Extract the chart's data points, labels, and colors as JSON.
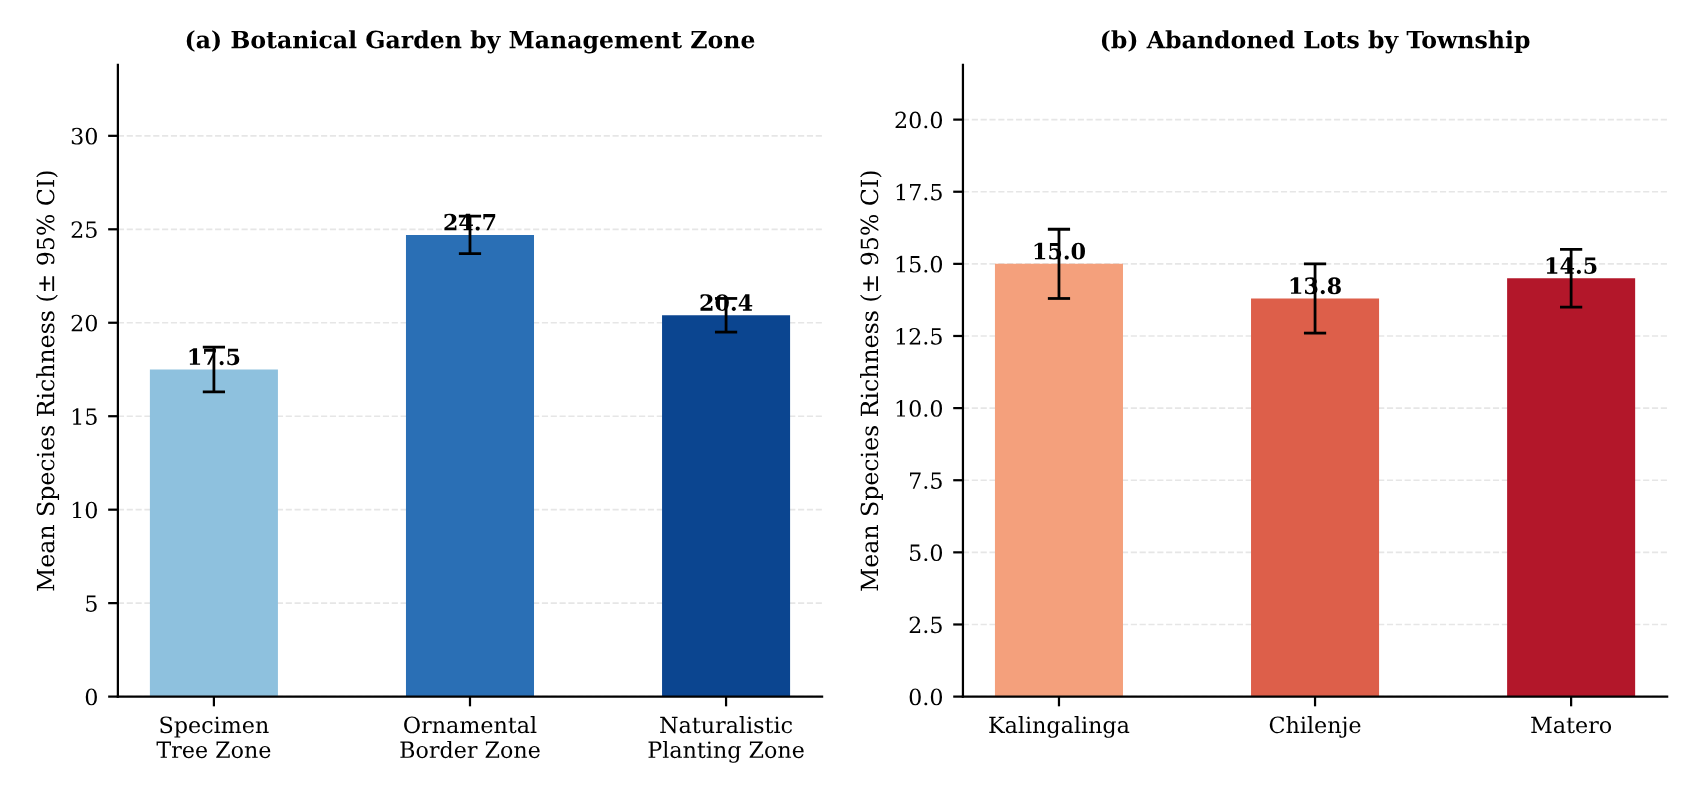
{
  "chart_data": [
    {
      "type": "bar",
      "title": "(a) Botanical Garden by Management Zone",
      "ylabel": "Mean Species Richness (± 95% CI)",
      "categories": [
        "Specimen\nTree Zone",
        "Ornamental\nBorder Zone",
        "Naturalistic\nPlanting Zone"
      ],
      "values": [
        17.5,
        24.7,
        20.4
      ],
      "errors": [
        1.2,
        1.0,
        0.9
      ],
      "colors": [
        "#8ec1de",
        "#2a6fb5",
        "#0b4590"
      ],
      "ylim": [
        0,
        33.8
      ],
      "yticks": [
        0,
        5,
        10,
        15,
        20,
        25,
        30
      ],
      "grid": "y",
      "data_labels": true
    },
    {
      "type": "bar",
      "title": "(b) Abandoned Lots by Township",
      "ylabel": "Mean Species Richness (± 95% CI)",
      "categories": [
        "Kalingalinga",
        "Chilenje",
        "Matero"
      ],
      "values": [
        15.0,
        13.8,
        14.5
      ],
      "errors": [
        1.2,
        1.2,
        1.0
      ],
      "colors": [
        "#f4a07c",
        "#dd5f4a",
        "#b3172a"
      ],
      "ylim": [
        0,
        21.9
      ],
      "yticks": [
        {
          "value": 0,
          "label": "0.0"
        },
        2.5,
        {
          "value": 5,
          "label": "5.0"
        },
        7.5,
        {
          "value": 10,
          "label": "10.0"
        },
        12.5,
        {
          "value": 15,
          "label": "15.0"
        },
        17.5,
        {
          "value": 20,
          "label": "20.0"
        }
      ],
      "grid": "y",
      "value_labels": [
        "15.0",
        "13.8",
        "14.5"
      ]
    }
  ]
}
